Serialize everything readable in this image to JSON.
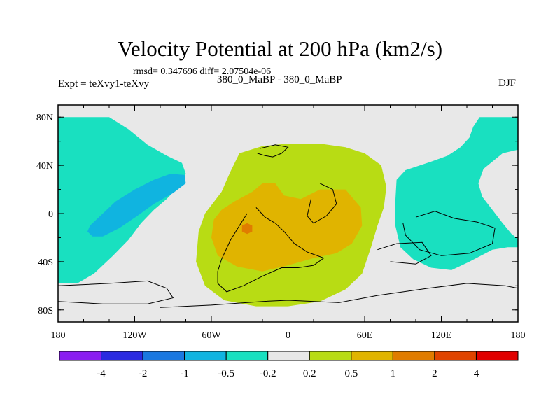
{
  "chart_data": {
    "type": "contour_map",
    "title": "Velocity Potential at 200 hPa (km2/s)",
    "stats_text": "rmsd= 0.347696 diff= 2.07504e-06",
    "left_label": "Expt = teXvy1-teXvy",
    "center_label": "380_0_MaBP - 380_0_MaBP",
    "right_label": "DJF",
    "xlim": [
      -180,
      180
    ],
    "ylim": [
      -90,
      90
    ],
    "x_ticks": [
      {
        "value": -180,
        "label": "180"
      },
      {
        "value": -120,
        "label": "120W"
      },
      {
        "value": -60,
        "label": "60W"
      },
      {
        "value": 0,
        "label": "0"
      },
      {
        "value": 60,
        "label": "60E"
      },
      {
        "value": 120,
        "label": "120E"
      },
      {
        "value": 180,
        "label": "180"
      }
    ],
    "y_ticks": [
      {
        "value": 80,
        "label": "80N"
      },
      {
        "value": 40,
        "label": "40N"
      },
      {
        "value": 0,
        "label": "0"
      },
      {
        "value": -40,
        "label": "40S"
      },
      {
        "value": -80,
        "label": "80S"
      }
    ],
    "colorbar": {
      "levels": [
        "-4",
        "-2",
        "-1",
        "-0.5",
        "-0.2",
        "0.2",
        "0.5",
        "1",
        "2",
        "4"
      ],
      "colors": [
        "#8a1ef0",
        "#2a2ae0",
        "#1a78e0",
        "#10b4e0",
        "#19e0c0",
        "#e8e8e8",
        "#b8dc14",
        "#e0b400",
        "#e07c00",
        "#e04400",
        "#e00000"
      ]
    },
    "regions": [
      {
        "name": "pacific-negative-area",
        "level": "-0.2 to -0.5",
        "color": "#19e0c0",
        "points": [
          [
            -180,
            80
          ],
          [
            -140,
            80
          ],
          [
            -125,
            70
          ],
          [
            -110,
            57
          ],
          [
            -95,
            48
          ],
          [
            -83,
            42
          ],
          [
            -80,
            33
          ],
          [
            -86,
            22
          ],
          [
            -95,
            12
          ],
          [
            -105,
            3
          ],
          [
            -115,
            -8
          ],
          [
            -125,
            -22
          ],
          [
            -137,
            -35
          ],
          [
            -152,
            -50
          ],
          [
            -165,
            -58
          ],
          [
            -180,
            -58
          ]
        ]
      },
      {
        "name": "pacific-negative-core",
        "level": "-0.5 to -1",
        "color": "#10b4e0",
        "points": [
          [
            -155,
            -10
          ],
          [
            -145,
            0
          ],
          [
            -135,
            10
          ],
          [
            -120,
            20
          ],
          [
            -105,
            28
          ],
          [
            -92,
            33
          ],
          [
            -81,
            32
          ],
          [
            -80,
            25
          ],
          [
            -90,
            17
          ],
          [
            -105,
            8
          ],
          [
            -118,
            -2
          ],
          [
            -132,
            -12
          ],
          [
            -145,
            -19
          ],
          [
            -153,
            -19
          ],
          [
            -157,
            -15
          ]
        ]
      },
      {
        "name": "indian-ocean-negative-area",
        "level": "-0.2 to -0.5",
        "color": "#19e0c0",
        "points": [
          [
            180,
            80
          ],
          [
            150,
            80
          ],
          [
            145,
            72
          ],
          [
            142,
            63
          ],
          [
            135,
            55
          ],
          [
            125,
            48
          ],
          [
            112,
            43
          ],
          [
            92,
            36
          ],
          [
            85,
            28
          ],
          [
            84,
            10
          ],
          [
            84,
            -10
          ],
          [
            88,
            -28
          ],
          [
            98,
            -38
          ],
          [
            112,
            -45
          ],
          [
            128,
            -47
          ],
          [
            142,
            -40
          ],
          [
            160,
            -30
          ],
          [
            172,
            -28
          ],
          [
            180,
            -28
          ]
        ]
      },
      {
        "name": "indian-ocean-hole",
        "level": "-0.2 to 0.2",
        "color": "#e8e8e8",
        "points": [
          [
            180,
            53
          ],
          [
            168,
            50
          ],
          [
            153,
            37
          ],
          [
            149,
            25
          ],
          [
            152,
            14
          ],
          [
            160,
            3
          ],
          [
            168,
            -8
          ],
          [
            175,
            -17
          ],
          [
            180,
            -21
          ]
        ]
      },
      {
        "name": "positive-area",
        "level": "0.2 to 0.5",
        "color": "#b8dc14",
        "points": [
          [
            -38,
            50
          ],
          [
            -20,
            56
          ],
          [
            0,
            58
          ],
          [
            25,
            58
          ],
          [
            45,
            55
          ],
          [
            60,
            50
          ],
          [
            73,
            40
          ],
          [
            77,
            22
          ],
          [
            75,
            5
          ],
          [
            70,
            -10
          ],
          [
            65,
            -28
          ],
          [
            58,
            -50
          ],
          [
            45,
            -63
          ],
          [
            25,
            -73
          ],
          [
            0,
            -77
          ],
          [
            -25,
            -77
          ],
          [
            -50,
            -72
          ],
          [
            -65,
            -60
          ],
          [
            -72,
            -40
          ],
          [
            -70,
            -15
          ],
          [
            -65,
            0
          ],
          [
            -52,
            18
          ],
          [
            -45,
            35
          ]
        ]
      },
      {
        "name": "positive-core",
        "level": "0.5 to 1",
        "color": "#e0b400",
        "points": [
          [
            -58,
            -5
          ],
          [
            -52,
            3
          ],
          [
            -42,
            10
          ],
          [
            -28,
            18
          ],
          [
            -20,
            25
          ],
          [
            -10,
            25
          ],
          [
            -3,
            15
          ],
          [
            10,
            12
          ],
          [
            25,
            20
          ],
          [
            45,
            20
          ],
          [
            57,
            5
          ],
          [
            58,
            -10
          ],
          [
            50,
            -25
          ],
          [
            38,
            -33
          ],
          [
            20,
            -37
          ],
          [
            0,
            -43
          ],
          [
            -20,
            -48
          ],
          [
            -40,
            -44
          ],
          [
            -55,
            -35
          ],
          [
            -60,
            -20
          ]
        ]
      },
      {
        "name": "positive-maximum",
        "level": "1 to 2",
        "color": "#e07c00",
        "points": [
          [
            -36,
            -10
          ],
          [
            -32,
            -8
          ],
          [
            -28,
            -10
          ],
          [
            -28,
            -15
          ],
          [
            -32,
            -17
          ],
          [
            -36,
            -15
          ]
        ]
      }
    ],
    "coastlines": [
      {
        "name": "north-america-outline",
        "points": [
          [
            -22,
            54
          ],
          [
            -10,
            57
          ],
          [
            0,
            55
          ],
          [
            -5,
            50
          ],
          [
            -12,
            47
          ],
          [
            -18,
            48
          ],
          [
            -24,
            50
          ]
        ]
      },
      {
        "name": "north-africa-outline",
        "points": [
          [
            -25,
            5
          ],
          [
            -18,
            -3
          ],
          [
            -10,
            -8
          ],
          [
            -3,
            -15
          ],
          [
            5,
            -25
          ],
          [
            15,
            -32
          ],
          [
            28,
            -37
          ],
          [
            20,
            -43
          ],
          [
            8,
            -45
          ],
          [
            -5,
            -45
          ],
          [
            -20,
            -52
          ],
          [
            -35,
            -60
          ],
          [
            -48,
            -65
          ],
          [
            -55,
            -58
          ],
          [
            -55,
            -48
          ],
          [
            -52,
            -38
          ],
          [
            -45,
            -22
          ],
          [
            -38,
            -10
          ],
          [
            -32,
            0
          ]
        ]
      },
      {
        "name": "east-africa-outline",
        "points": [
          [
            25,
            25
          ],
          [
            35,
            20
          ],
          [
            38,
            8
          ],
          [
            30,
            -2
          ],
          [
            20,
            -8
          ],
          [
            15,
            -2
          ],
          [
            18,
            12
          ]
        ]
      },
      {
        "name": "antarctic-margin-outline",
        "points": [
          [
            -180,
            -60
          ],
          [
            -140,
            -58
          ],
          [
            -110,
            -56
          ],
          [
            -95,
            -62
          ],
          [
            -90,
            -70
          ],
          [
            -110,
            -75
          ],
          [
            -145,
            -75
          ],
          [
            -180,
            -73
          ]
        ]
      },
      {
        "name": "southern-coast-outline",
        "points": [
          [
            -100,
            -78
          ],
          [
            -60,
            -76
          ],
          [
            -20,
            -73
          ],
          [
            0,
            -72
          ],
          [
            40,
            -74
          ],
          [
            70,
            -68
          ],
          [
            110,
            -62
          ],
          [
            140,
            -58
          ],
          [
            170,
            -60
          ],
          [
            180,
            -62
          ]
        ]
      },
      {
        "name": "australia-outline",
        "points": [
          [
            100,
            -3
          ],
          [
            115,
            2
          ],
          [
            130,
            -4
          ],
          [
            148,
            -7
          ],
          [
            162,
            -12
          ],
          [
            160,
            -25
          ],
          [
            142,
            -33
          ],
          [
            120,
            -35
          ],
          [
            103,
            -30
          ],
          [
            92,
            -18
          ],
          [
            90,
            -8
          ]
        ]
      },
      {
        "name": "south-america-outline",
        "points": [
          [
            70,
            -30
          ],
          [
            85,
            -25
          ],
          [
            105,
            -24
          ],
          [
            112,
            -35
          ],
          [
            100,
            -42
          ],
          [
            80,
            -40
          ]
        ]
      }
    ]
  }
}
